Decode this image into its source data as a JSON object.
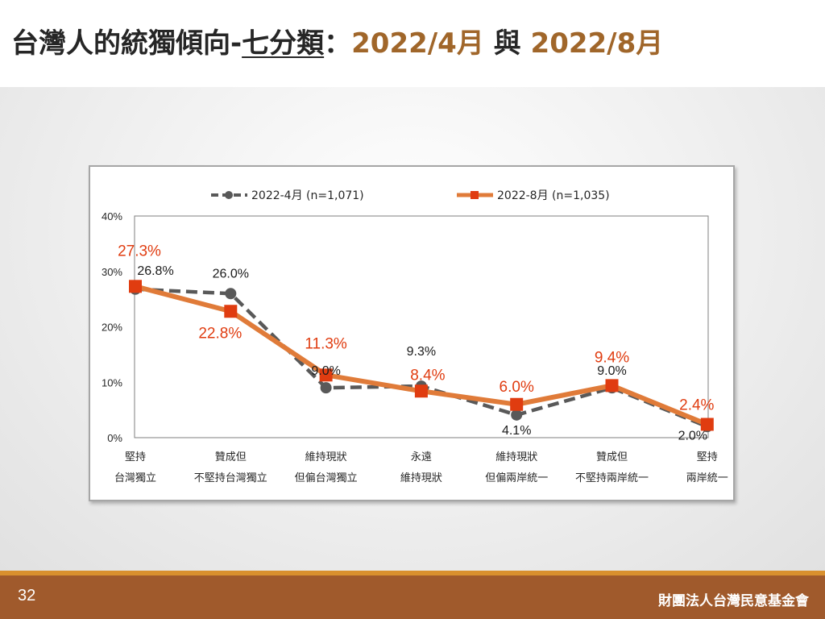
{
  "title": {
    "main": "台灣人的統獨傾向-",
    "underlined": "七分類",
    "colon": "：",
    "period1": "2022/4月",
    "connector": " 與 ",
    "period2": "2022/8月"
  },
  "colors": {
    "april_series": "#595959",
    "august_series": "#e07b39",
    "august_marker": "#e03c10",
    "august_label": "#e03c10",
    "title_accent": "#a0662a",
    "footer_bg": "#a05a2c",
    "footer_line": "#d9902e"
  },
  "chart_data": {
    "type": "line",
    "legend_position": "top",
    "ylim": [
      0,
      40
    ],
    "y_ticks": [
      "0%",
      "10%",
      "20%",
      "30%",
      "40%"
    ],
    "grid": false,
    "categories": [
      [
        "堅持",
        "台灣獨立"
      ],
      [
        "贊成但",
        "不堅持台灣獨立"
      ],
      [
        "維持現狀",
        "但偏台灣獨立"
      ],
      [
        "永遠",
        "維持現狀"
      ],
      [
        "維持現狀",
        "但偏兩岸統一"
      ],
      [
        "贊成但",
        "不堅持兩岸統一"
      ],
      [
        "堅持",
        "兩岸統一"
      ]
    ],
    "series": [
      {
        "name": "2022-4月 (n=1,071)",
        "values": [
          26.8,
          26.0,
          9.0,
          9.3,
          4.1,
          9.0,
          2.0
        ],
        "labels": [
          "26.8%",
          "26.0%",
          "9.0%",
          "9.3%",
          "4.1%",
          "9.0%",
          "2.0%"
        ]
      },
      {
        "name": "2022-8月 (n=1,035)",
        "values": [
          27.3,
          22.8,
          11.3,
          8.4,
          6.0,
          9.4,
          2.4
        ],
        "labels": [
          "27.3%",
          "22.8%",
          "11.3%",
          "8.4%",
          "6.0%",
          "9.4%",
          "2.4%"
        ]
      }
    ]
  },
  "footer": {
    "page_number": "32",
    "organization": "財團法人台灣民意基金會"
  }
}
